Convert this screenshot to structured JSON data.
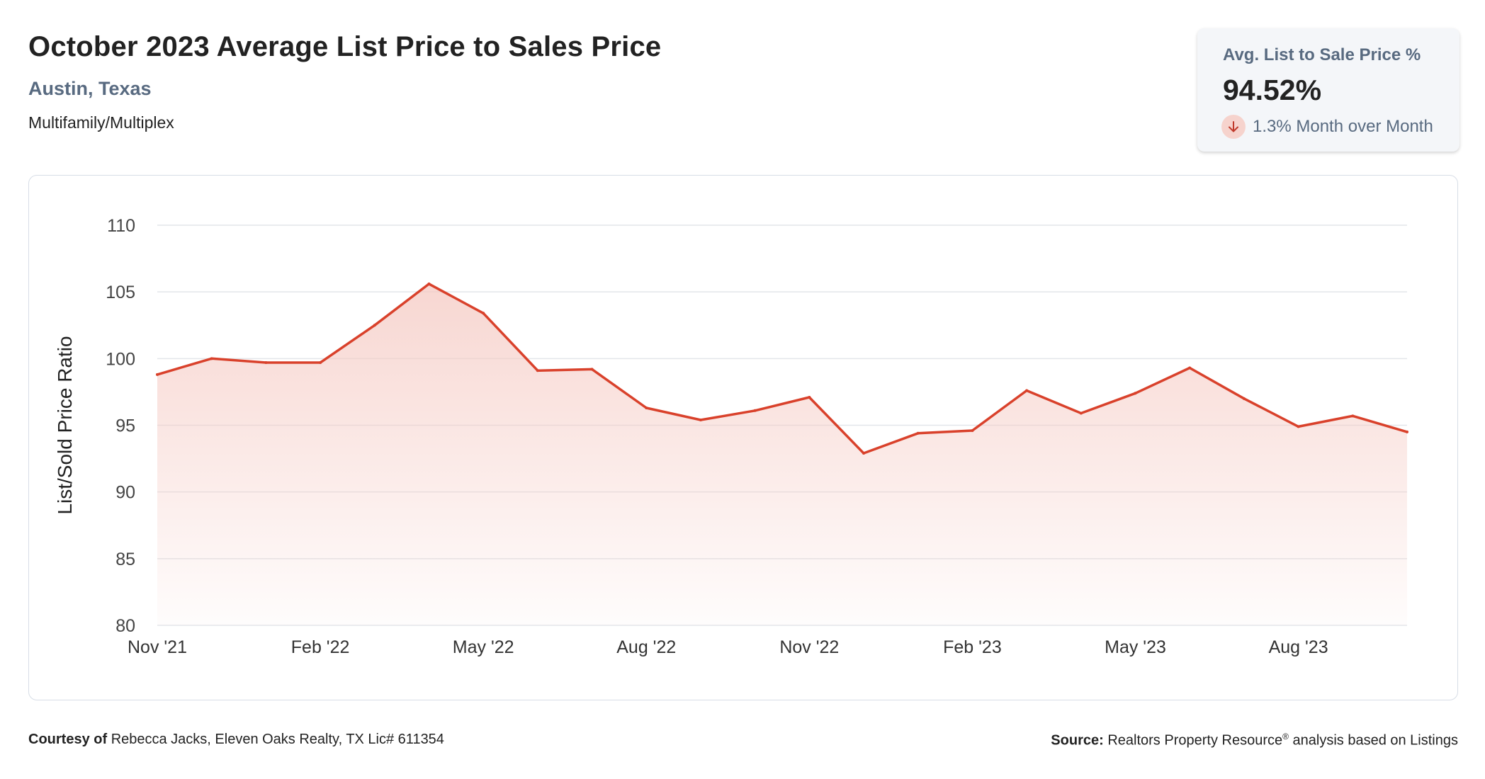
{
  "header": {
    "title": "October 2023 Average List Price to Sales Price",
    "location": "Austin, Texas",
    "property_type": "Multifamily/Multiplex"
  },
  "kpi": {
    "label": "Avg. List to Sale Price %",
    "value": "94.52%",
    "change_text": "1.3% Month over Month",
    "direction": "down",
    "direction_icon": "arrow-down-icon"
  },
  "footer": {
    "courtesy_label": "Courtesy of",
    "courtesy_text": "Rebecca Jacks, Eleven Oaks Realty, TX Lic# 611354",
    "source_label": "Source:",
    "source_text_main": "Realtors Property Resource",
    "source_mark": "®",
    "source_text_tail": " analysis based on Listings"
  },
  "colors": {
    "line": "#d9412b",
    "fill_top": "#f5c9c2",
    "grid": "#e3e6ea",
    "text_muted": "#586a80"
  },
  "chart_data": {
    "type": "area",
    "ylabel": "List/Sold Price Ratio",
    "xlabel": "",
    "ylim": [
      80,
      110
    ],
    "yticks": [
      80,
      85,
      90,
      95,
      100,
      105,
      110
    ],
    "x_tick_labels": [
      "Nov '21",
      "Feb '22",
      "May '22",
      "Aug '22",
      "Nov '22",
      "Feb '23",
      "May '23",
      "Aug '23"
    ],
    "x_tick_months": [
      "2021-11",
      "2022-02",
      "2022-05",
      "2022-08",
      "2022-11",
      "2023-02",
      "2023-05",
      "2023-08"
    ],
    "grid": true,
    "series": [
      {
        "x": [
          "2021-11",
          "2021-12",
          "2022-01",
          "2022-02",
          "2022-03",
          "2022-04",
          "2022-05",
          "2022-06",
          "2022-07",
          "2022-08",
          "2022-09",
          "2022-10",
          "2022-11",
          "2022-12",
          "2023-01",
          "2023-02",
          "2023-03",
          "2023-04",
          "2023-05",
          "2023-06",
          "2023-07",
          "2023-08",
          "2023-09",
          "2023-10"
        ],
        "values": [
          98.8,
          100.0,
          99.7,
          99.7,
          102.5,
          105.6,
          103.4,
          99.1,
          99.2,
          96.3,
          95.4,
          96.1,
          97.1,
          92.9,
          94.4,
          94.6,
          97.6,
          95.9,
          97.4,
          99.3,
          97.0,
          94.9,
          95.7,
          94.5
        ]
      }
    ]
  }
}
